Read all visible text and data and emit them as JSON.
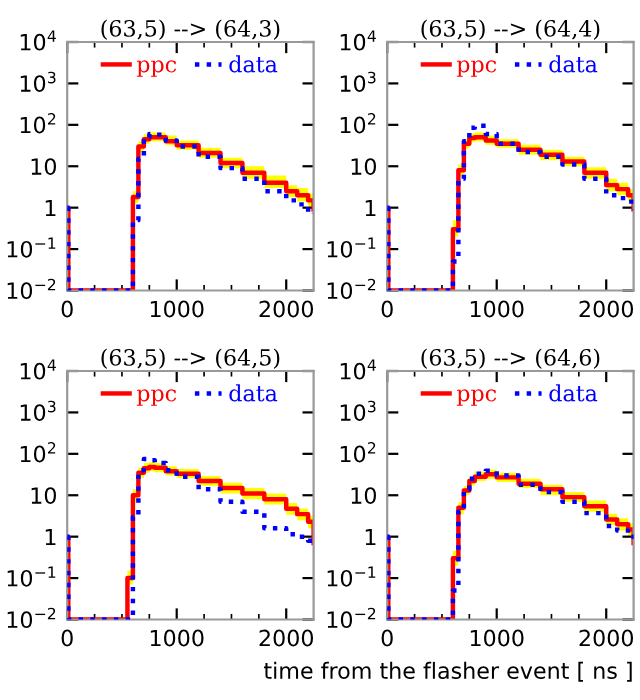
{
  "chart_data": [
    {
      "type": "step",
      "title": "(63,5) --> (64,3)",
      "log": "y",
      "legend": "top",
      "xlim": [
        0,
        2250
      ],
      "ylim": [
        0.01,
        10000
      ],
      "xticks": [
        0,
        {
          "value": 250,
          "label": null
        },
        {
          "value": 500,
          "label": null
        },
        {
          "value": 750,
          "label": null
        },
        1000,
        {
          "value": 1250,
          "label": null
        },
        {
          "value": 1500,
          "label": null
        },
        {
          "value": 1750,
          "label": null
        },
        2000
      ],
      "yticks": [
        {
          "value": 0.01,
          "label": "10$^{−2}$"
        },
        {
          "value": 0.1,
          "label": "10$^{−1}$"
        },
        1,
        10,
        {
          "value": 100,
          "label": "10$^{2}$"
        },
        {
          "value": 1000,
          "label": "10$^{3}$"
        },
        {
          "value": 10000,
          "label": "10$^{4}$"
        }
      ],
      "x": [
        0,
        10,
        500,
        550,
        600,
        650,
        700,
        750,
        800,
        900,
        1000,
        1200,
        1400,
        1600,
        1800,
        2000,
        2100,
        2200,
        2250
      ],
      "series": [
        {
          "name": "ppc",
          "color": "#ff0000",
          "line_style": "solid",
          "values": [
            1,
            0.01,
            0.01,
            0.01,
            1.8,
            30,
            45,
            50,
            50,
            40,
            32,
            21,
            12,
            7,
            4,
            2.5,
            2,
            1.5,
            0.9
          ],
          "lower": [
            1,
            0.01,
            0.01,
            0.01,
            1.3,
            22,
            35,
            40,
            40,
            32,
            25,
            16,
            9,
            5,
            3,
            1.8,
            1.4,
            1,
            0.6
          ],
          "upper": [
            1,
            0.01,
            0.01,
            0.01,
            2.5,
            40,
            60,
            65,
            65,
            55,
            42,
            28,
            16,
            10,
            6,
            3.5,
            3,
            2.2,
            1.3
          ]
        },
        {
          "name": "data",
          "color": "#0000ff",
          "line_style": "dotted",
          "values": [
            1,
            0.01,
            0.01,
            0.01,
            0.5,
            15,
            50,
            60,
            58,
            42,
            30,
            17,
            9,
            5,
            2.5,
            1.5,
            1.2,
            0.75,
            0.7
          ]
        }
      ]
    },
    {
      "type": "step",
      "title": "(63,5) --> (64,4)",
      "log": "y",
      "legend": "top",
      "xlim": [
        0,
        2250
      ],
      "ylim": [
        0.01,
        10000
      ],
      "xticks": [
        0,
        {
          "value": 250,
          "label": null
        },
        {
          "value": 500,
          "label": null
        },
        {
          "value": 750,
          "label": null
        },
        1000,
        {
          "value": 1250,
          "label": null
        },
        {
          "value": 1500,
          "label": null
        },
        {
          "value": 1750,
          "label": null
        },
        2000
      ],
      "yticks": [
        {
          "value": 0.01,
          "label": "10$^{−2}$"
        },
        {
          "value": 0.1,
          "label": "10$^{−1}$"
        },
        1,
        10,
        {
          "value": 100,
          "label": "10$^{2}$"
        },
        {
          "value": 1000,
          "label": "10$^{3}$"
        },
        {
          "value": 10000,
          "label": "10$^{4}$"
        }
      ],
      "x": [
        0,
        10,
        500,
        550,
        600,
        650,
        700,
        750,
        800,
        900,
        1000,
        1200,
        1400,
        1600,
        1800,
        2000,
        2100,
        2200,
        2250
      ],
      "series": [
        {
          "name": "ppc",
          "color": "#ff0000",
          "line_style": "solid",
          "values": [
            1,
            0.01,
            0.01,
            0.01,
            0.3,
            8,
            35,
            48,
            50,
            42,
            35,
            25,
            19,
            13,
            7,
            3.5,
            2.8,
            2,
            0.9
          ],
          "lower": [
            1,
            0.01,
            0.01,
            0.01,
            0.2,
            6,
            27,
            38,
            40,
            33,
            28,
            19,
            14,
            10,
            5,
            2.5,
            2,
            1.4,
            0.6
          ],
          "upper": [
            1,
            0.01,
            0.01,
            0.01,
            0.5,
            11,
            45,
            62,
            65,
            55,
            45,
            33,
            25,
            17,
            9.5,
            5,
            4,
            2.8,
            1.3
          ]
        },
        {
          "name": "data",
          "color": "#0000ff",
          "line_style": "dotted",
          "values": [
            1,
            0.01,
            0.01,
            0.01,
            0.05,
            5,
            40,
            85,
            95,
            60,
            35,
            22,
            17,
            11,
            5,
            2,
            1.7,
            1.4,
            0.9
          ]
        }
      ]
    },
    {
      "type": "step",
      "title": "(63,5) --> (64,5)",
      "log": "y",
      "legend": "top",
      "xlim": [
        0,
        2250
      ],
      "ylim": [
        0.01,
        10000
      ],
      "xticks": [
        0,
        {
          "value": 250,
          "label": null
        },
        {
          "value": 500,
          "label": null
        },
        {
          "value": 750,
          "label": null
        },
        1000,
        {
          "value": 1250,
          "label": null
        },
        {
          "value": 1500,
          "label": null
        },
        {
          "value": 1750,
          "label": null
        },
        2000
      ],
      "yticks": [
        {
          "value": 0.01,
          "label": "10$^{−2}$"
        },
        {
          "value": 0.1,
          "label": "10$^{−1}$"
        },
        1,
        10,
        {
          "value": 100,
          "label": "10$^{2}$"
        },
        {
          "value": 1000,
          "label": "10$^{3}$"
        },
        {
          "value": 10000,
          "label": "10$^{4}$"
        }
      ],
      "x": [
        0,
        10,
        500,
        550,
        600,
        650,
        700,
        750,
        800,
        900,
        1000,
        1200,
        1400,
        1600,
        1800,
        2000,
        2100,
        2200,
        2250
      ],
      "series": [
        {
          "name": "ppc",
          "color": "#ff0000",
          "line_style": "solid",
          "values": [
            1,
            0.01,
            0.01,
            0.1,
            10,
            35,
            45,
            48,
            46,
            38,
            33,
            22,
            15,
            11,
            8,
            4.7,
            3.5,
            2.3,
            0.7
          ],
          "lower": [
            1,
            0.01,
            0.01,
            0.07,
            7,
            26,
            35,
            38,
            36,
            30,
            26,
            17,
            11,
            8,
            6,
            3.4,
            2.5,
            1.6,
            0.5
          ],
          "upper": [
            1,
            0.01,
            0.01,
            0.15,
            14,
            47,
            60,
            63,
            60,
            50,
            43,
            29,
            20,
            15,
            11,
            6.5,
            4.8,
            3.2,
            1.1
          ]
        },
        {
          "name": "data",
          "color": "#0000ff",
          "line_style": "dotted",
          "values": [
            1,
            0.01,
            0.01,
            0.01,
            3,
            40,
            75,
            70,
            60,
            40,
            28,
            14,
            7,
            4,
            1.6,
            1.15,
            1,
            0.8,
            0.75
          ]
        }
      ]
    },
    {
      "type": "step",
      "title": "(63,5) --> (64,6)",
      "xlabel": "time from the flasher event [ ns ]",
      "log": "y",
      "legend": "top",
      "xlim": [
        0,
        2250
      ],
      "ylim": [
        0.01,
        10000
      ],
      "xticks": [
        0,
        {
          "value": 250,
          "label": null
        },
        {
          "value": 500,
          "label": null
        },
        {
          "value": 750,
          "label": null
        },
        1000,
        {
          "value": 1250,
          "label": null
        },
        {
          "value": 1500,
          "label": null
        },
        {
          "value": 1750,
          "label": null
        },
        2000
      ],
      "yticks": [
        {
          "value": 0.01,
          "label": "10$^{−2}$"
        },
        {
          "value": 0.1,
          "label": "10$^{−1}$"
        },
        1,
        10,
        {
          "value": 100,
          "label": "10$^{2}$"
        },
        {
          "value": 1000,
          "label": "10$^{3}$"
        },
        {
          "value": 10000,
          "label": "10$^{4}$"
        }
      ],
      "x": [
        0,
        10,
        500,
        550,
        600,
        650,
        700,
        750,
        800,
        900,
        1000,
        1200,
        1400,
        1600,
        1800,
        2000,
        2100,
        2200,
        2250
      ],
      "series": [
        {
          "name": "ppc",
          "color": "#ff0000",
          "line_style": "solid",
          "values": [
            1,
            0.01,
            0.01,
            0.01,
            0.3,
            5,
            13,
            22,
            28,
            32,
            27,
            19,
            14,
            9,
            5.4,
            2.6,
            2,
            1.5,
            0.7
          ],
          "lower": [
            1,
            0.01,
            0.01,
            0.01,
            0.2,
            3.5,
            10,
            17,
            22,
            25,
            21,
            15,
            10,
            7,
            4,
            1.9,
            1.4,
            1,
            0.5
          ],
          "upper": [
            1,
            0.01,
            0.01,
            0.01,
            0.45,
            7,
            17,
            29,
            37,
            42,
            35,
            25,
            18,
            12,
            7.5,
            3.6,
            2.8,
            2.1,
            1
          ]
        },
        {
          "name": "data",
          "color": "#0000ff",
          "line_style": "dotted",
          "values": [
            1,
            0.01,
            0.01,
            0.01,
            0.05,
            4,
            14,
            25,
            33,
            39,
            30,
            18,
            12,
            7,
            3.7,
            1.8,
            1.4,
            1,
            0.75
          ]
        }
      ]
    }
  ]
}
